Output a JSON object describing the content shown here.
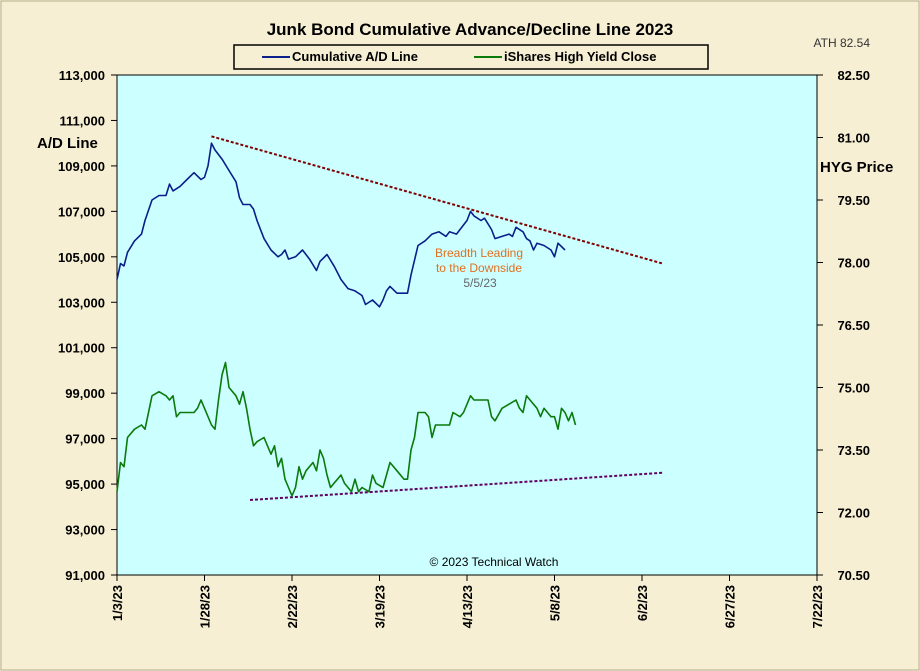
{
  "chart_data": {
    "type": "line",
    "title": "Junk Bond Cumulative  Advance/Decline  Line 2023",
    "legend": [
      {
        "name": "Cumulative A/D Line",
        "color": "#0b1f8a"
      },
      {
        "name": "iShares High Yield Close",
        "color": "#0a7a0a"
      }
    ],
    "legend_placement": "top-center",
    "ylabel_left": "A/D Line",
    "ylabel_right": "HYG Price",
    "ylim_left": [
      91000,
      113000
    ],
    "ylim_right": [
      70.5,
      82.5
    ],
    "yticks_left": [
      "91,000",
      "93,000",
      "95,000",
      "97,000",
      "99,000",
      "101,000",
      "103,000",
      "105,000",
      "107,000",
      "109,000",
      "111,000",
      "113,000"
    ],
    "yticks_right": [
      "70.50",
      "72.00",
      "73.50",
      "75.00",
      "76.50",
      "78.00",
      "79.50",
      "81.00",
      "82.50"
    ],
    "yticks_right_values": [
      70.5,
      72.0,
      73.5,
      75.0,
      76.5,
      78.0,
      79.5,
      81.0,
      82.5
    ],
    "xticks": [
      "1/3/23",
      "1/28/23",
      "2/22/23",
      "3/19/23",
      "4/13/23",
      "5/8/23",
      "6/2/23",
      "6/27/23",
      "7/22/23"
    ],
    "xlim_days": [
      0,
      200
    ],
    "grid": false,
    "ath_label": "ATH  82.54",
    "annotation": {
      "line1": "Breadth Leading",
      "line2": "to the Downside",
      "date": "5/5/23"
    },
    "copyright": "© 2023 Technical Watch",
    "series": [
      {
        "name": "Cumulative A/D Line",
        "axis": "left",
        "color": "#0b1f8a",
        "points": [
          [
            0,
            104000
          ],
          [
            1,
            104700
          ],
          [
            2,
            104600
          ],
          [
            3,
            105200
          ],
          [
            5,
            105700
          ],
          [
            7,
            106000
          ],
          [
            8,
            106600
          ],
          [
            10,
            107500
          ],
          [
            12,
            107700
          ],
          [
            14,
            107700
          ],
          [
            15,
            108200
          ],
          [
            16,
            107900
          ],
          [
            18,
            108100
          ],
          [
            20,
            108400
          ],
          [
            22,
            108700
          ],
          [
            24,
            108400
          ],
          [
            25,
            108500
          ],
          [
            26,
            109000
          ],
          [
            27,
            110000
          ],
          [
            28,
            109700
          ],
          [
            30,
            109300
          ],
          [
            32,
            108800
          ],
          [
            34,
            108300
          ],
          [
            35,
            107600
          ],
          [
            36,
            107300
          ],
          [
            38,
            107300
          ],
          [
            39,
            107100
          ],
          [
            40,
            106600
          ],
          [
            42,
            105800
          ],
          [
            44,
            105300
          ],
          [
            46,
            105000
          ],
          [
            47,
            105100
          ],
          [
            48,
            105300
          ],
          [
            49,
            104900
          ],
          [
            51,
            105000
          ],
          [
            53,
            105300
          ],
          [
            55,
            104900
          ],
          [
            57,
            104400
          ],
          [
            58,
            104800
          ],
          [
            60,
            105100
          ],
          [
            62,
            104600
          ],
          [
            64,
            104000
          ],
          [
            66,
            103600
          ],
          [
            68,
            103500
          ],
          [
            70,
            103300
          ],
          [
            71,
            102900
          ],
          [
            73,
            103100
          ],
          [
            75,
            102800
          ],
          [
            76,
            103100
          ],
          [
            77,
            103500
          ],
          [
            78,
            103700
          ],
          [
            80,
            103400
          ],
          [
            83,
            103400
          ],
          [
            84,
            104200
          ],
          [
            86,
            105500
          ],
          [
            88,
            105700
          ],
          [
            90,
            106000
          ],
          [
            92,
            106100
          ],
          [
            94,
            105900
          ],
          [
            95,
            106100
          ],
          [
            97,
            106000
          ],
          [
            99,
            106400
          ],
          [
            100,
            106600
          ],
          [
            101,
            107000
          ],
          [
            102,
            106800
          ],
          [
            104,
            106600
          ],
          [
            105,
            106700
          ],
          [
            107,
            106200
          ],
          [
            108,
            105800
          ],
          [
            110,
            105900
          ],
          [
            112,
            106000
          ],
          [
            113,
            105900
          ],
          [
            114,
            106300
          ],
          [
            116,
            106100
          ],
          [
            117,
            105800
          ],
          [
            118,
            105700
          ],
          [
            119,
            105300
          ],
          [
            120,
            105600
          ],
          [
            122,
            105500
          ],
          [
            124,
            105300
          ],
          [
            125,
            105000
          ],
          [
            126,
            105600
          ],
          [
            128,
            105300
          ]
        ]
      },
      {
        "name": "iShares High Yield Close",
        "axis": "right",
        "color": "#0a7a0a",
        "points": [
          [
            0,
            72.5
          ],
          [
            1,
            73.2
          ],
          [
            2,
            73.1
          ],
          [
            3,
            73.8
          ],
          [
            5,
            74.0
          ],
          [
            7,
            74.1
          ],
          [
            8,
            74.0
          ],
          [
            10,
            74.8
          ],
          [
            12,
            74.9
          ],
          [
            14,
            74.8
          ],
          [
            15,
            74.7
          ],
          [
            16,
            74.8
          ],
          [
            17,
            74.3
          ],
          [
            18,
            74.4
          ],
          [
            20,
            74.4
          ],
          [
            22,
            74.4
          ],
          [
            23,
            74.5
          ],
          [
            24,
            74.7
          ],
          [
            25,
            74.5
          ],
          [
            27,
            74.1
          ],
          [
            28,
            74.0
          ],
          [
            29,
            74.7
          ],
          [
            30,
            75.3
          ],
          [
            31,
            75.6
          ],
          [
            32,
            75.0
          ],
          [
            34,
            74.8
          ],
          [
            35,
            74.6
          ],
          [
            36,
            74.9
          ],
          [
            37,
            74.5
          ],
          [
            38,
            74.0
          ],
          [
            39,
            73.6
          ],
          [
            40,
            73.7
          ],
          [
            42,
            73.8
          ],
          [
            43,
            73.6
          ],
          [
            44,
            73.4
          ],
          [
            45,
            73.6
          ],
          [
            46,
            73.1
          ],
          [
            47,
            73.3
          ],
          [
            48,
            72.8
          ],
          [
            49,
            72.6
          ],
          [
            50,
            72.4
          ],
          [
            51,
            72.6
          ],
          [
            52,
            73.1
          ],
          [
            53,
            72.8
          ],
          [
            54,
            73.0
          ],
          [
            56,
            73.2
          ],
          [
            57,
            73.0
          ],
          [
            58,
            73.5
          ],
          [
            59,
            73.3
          ],
          [
            60,
            72.9
          ],
          [
            61,
            72.6
          ],
          [
            62,
            72.7
          ],
          [
            63,
            72.8
          ],
          [
            64,
            72.9
          ],
          [
            65,
            72.7
          ],
          [
            66,
            72.6
          ],
          [
            67,
            72.5
          ],
          [
            68,
            72.8
          ],
          [
            69,
            72.5
          ],
          [
            70,
            72.6
          ],
          [
            72,
            72.5
          ],
          [
            73,
            72.9
          ],
          [
            74,
            72.7
          ],
          [
            76,
            72.6
          ],
          [
            77,
            72.9
          ],
          [
            78,
            73.2
          ],
          [
            80,
            73.0
          ],
          [
            82,
            72.8
          ],
          [
            83,
            72.8
          ],
          [
            84,
            73.5
          ],
          [
            85,
            73.8
          ],
          [
            86,
            74.4
          ],
          [
            88,
            74.4
          ],
          [
            89,
            74.3
          ],
          [
            90,
            73.8
          ],
          [
            91,
            74.1
          ],
          [
            93,
            74.1
          ],
          [
            95,
            74.1
          ],
          [
            96,
            74.4
          ],
          [
            98,
            74.3
          ],
          [
            99,
            74.4
          ],
          [
            100,
            74.6
          ],
          [
            101,
            74.8
          ],
          [
            102,
            74.7
          ],
          [
            104,
            74.7
          ],
          [
            106,
            74.7
          ],
          [
            107,
            74.3
          ],
          [
            108,
            74.2
          ],
          [
            110,
            74.5
          ],
          [
            112,
            74.6
          ],
          [
            114,
            74.7
          ],
          [
            115,
            74.5
          ],
          [
            116,
            74.4
          ],
          [
            117,
            74.8
          ],
          [
            118,
            74.7
          ],
          [
            120,
            74.5
          ],
          [
            121,
            74.3
          ],
          [
            122,
            74.5
          ],
          [
            124,
            74.3
          ],
          [
            125,
            74.3
          ],
          [
            126,
            74.0
          ],
          [
            127,
            74.5
          ],
          [
            128,
            74.4
          ],
          [
            129,
            74.2
          ],
          [
            130,
            74.4
          ],
          [
            131,
            74.1
          ]
        ]
      }
    ],
    "trendlines": [
      {
        "name": "upper-trendline",
        "axis": "left",
        "color": "#800000",
        "from": [
          27,
          110300
        ],
        "to": [
          156,
          104700
        ]
      },
      {
        "name": "lower-trendline",
        "axis": "left",
        "color": "#600060",
        "from": [
          38,
          94300
        ],
        "to": [
          156,
          95500
        ]
      }
    ]
  }
}
